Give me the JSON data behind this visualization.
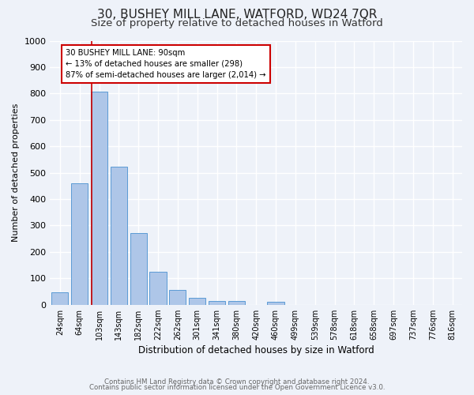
{
  "title": "30, BUSHEY MILL LANE, WATFORD, WD24 7QR",
  "subtitle": "Size of property relative to detached houses in Watford",
  "xlabel": "Distribution of detached houses by size in Watford",
  "ylabel": "Number of detached properties",
  "footnote1": "Contains HM Land Registry data © Crown copyright and database right 2024.",
  "footnote2": "Contains public sector information licensed under the Open Government Licence v3.0.",
  "categories": [
    "24sqm",
    "64sqm",
    "103sqm",
    "143sqm",
    "182sqm",
    "222sqm",
    "262sqm",
    "301sqm",
    "341sqm",
    "380sqm",
    "420sqm",
    "460sqm",
    "499sqm",
    "539sqm",
    "578sqm",
    "618sqm",
    "658sqm",
    "697sqm",
    "737sqm",
    "776sqm",
    "816sqm"
  ],
  "values": [
    46,
    460,
    808,
    524,
    272,
    125,
    57,
    26,
    15,
    15,
    0,
    10,
    0,
    0,
    0,
    0,
    0,
    0,
    0,
    0,
    0
  ],
  "bar_color": "#aec6e8",
  "bar_edge_color": "#5b9bd5",
  "ylim": [
    0,
    1000
  ],
  "yticks": [
    0,
    100,
    200,
    300,
    400,
    500,
    600,
    700,
    800,
    900,
    1000
  ],
  "property_line_color": "#cc0000",
  "annotation_text": "30 BUSHEY MILL LANE: 90sqm\n← 13% of detached houses are smaller (298)\n87% of semi-detached houses are larger (2,014) →",
  "annotation_box_color": "#ffffff",
  "annotation_box_edge_color": "#cc0000",
  "background_color": "#eef2f9",
  "plot_background_color": "#eef2f9",
  "grid_color": "#ffffff",
  "title_fontsize": 11,
  "subtitle_fontsize": 9.5
}
